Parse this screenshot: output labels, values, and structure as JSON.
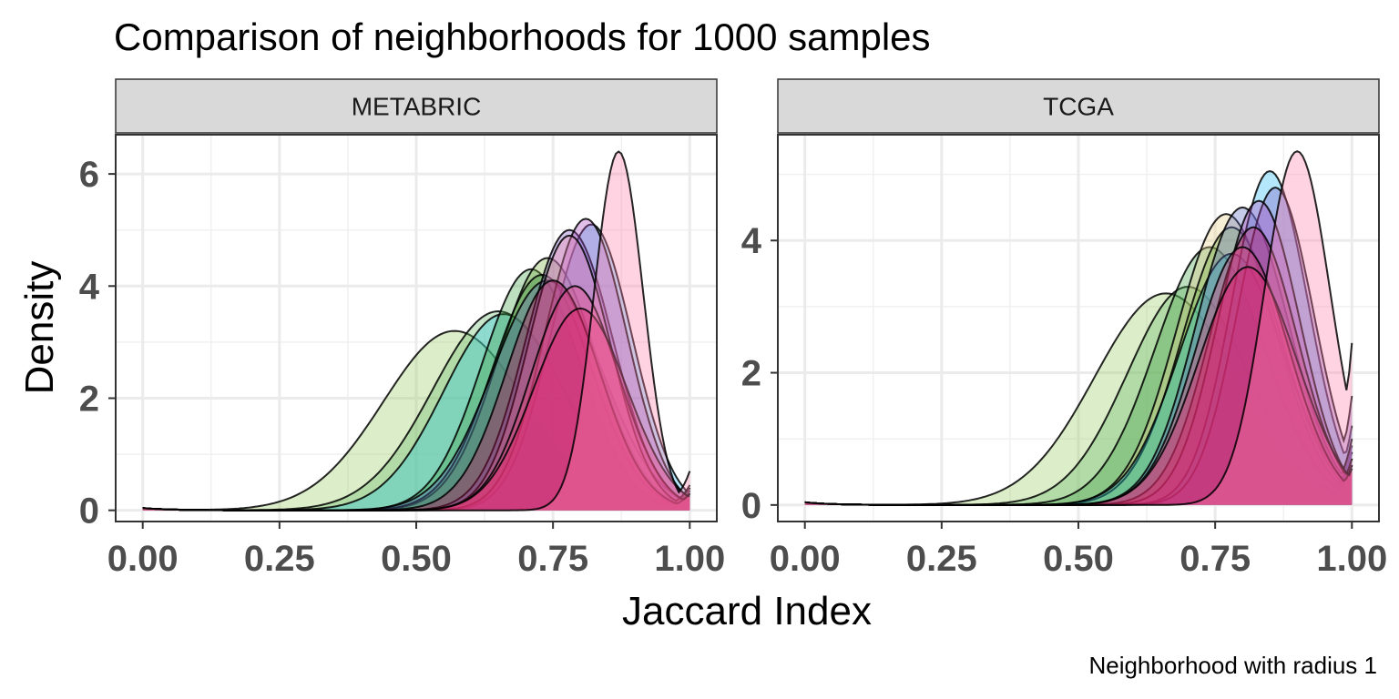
{
  "chart_data": {
    "type": "area",
    "title": "Comparison of neighborhoods for 1000 samples",
    "xlabel": "Jaccard Index",
    "ylabel": "Density",
    "caption": "Neighborhood with radius 1",
    "grid": true,
    "legend": "none",
    "panels": [
      {
        "name": "METABRIC",
        "xlim": [
          0,
          1
        ],
        "ylim": [
          -0.2,
          6.7
        ],
        "x_ticks": [
          0.0,
          0.25,
          0.5,
          0.75,
          1.0
        ],
        "x_tick_labels": [
          "0.00",
          "0.25",
          "0.50",
          "0.75",
          "1.00"
        ],
        "y_ticks": [
          0,
          2,
          4,
          6
        ],
        "y_tick_labels": [
          "0",
          "2",
          "4",
          "6"
        ],
        "series": [
          {
            "color": "#9ccc65",
            "mode": 0.57,
            "peak": 3.2,
            "sd": 0.13,
            "tail": 0.3
          },
          {
            "color": "#66bb6a",
            "mode": 0.65,
            "peak": 3.55,
            "sd": 0.12,
            "tail": 0.35
          },
          {
            "color": "#26c6da",
            "mode": 0.66,
            "peak": 3.5,
            "sd": 0.11,
            "tail": 0.4
          },
          {
            "color": "#43a047",
            "mode": 0.71,
            "peak": 4.3,
            "sd": 0.09,
            "tail": 0.4
          },
          {
            "color": "#7cb342",
            "mode": 0.74,
            "peak": 4.5,
            "sd": 0.09,
            "tail": 0.35
          },
          {
            "color": "#2e7d32",
            "mode": 0.73,
            "peak": 4.2,
            "sd": 0.09,
            "tail": 0.3
          },
          {
            "color": "#5c6bc0",
            "mode": 0.74,
            "peak": 4.1,
            "sd": 0.1,
            "tail": 0.4
          },
          {
            "color": "#29b6f6",
            "mode": 0.82,
            "peak": 5.1,
            "sd": 0.075,
            "tail": 0.35
          },
          {
            "color": "#7e57c2",
            "mode": 0.78,
            "peak": 5.0,
            "sd": 0.08,
            "tail": 0.35
          },
          {
            "color": "#ab47bc",
            "mode": 0.81,
            "peak": 5.2,
            "sd": 0.075,
            "tail": 0.4
          },
          {
            "color": "#f48fb1",
            "mode": 0.78,
            "peak": 4.9,
            "sd": 0.075,
            "tail": 0.45
          },
          {
            "color": "#c2185b",
            "mode": 0.75,
            "peak": 4.1,
            "sd": 0.085,
            "tail": 0.3
          },
          {
            "color": "#ec407a",
            "mode": 0.79,
            "peak": 4.0,
            "sd": 0.08,
            "tail": 0.3
          },
          {
            "color": "#e91e63",
            "mode": 0.8,
            "peak": 3.6,
            "sd": 0.085,
            "tail": 0.25
          },
          {
            "color": "#ff80ab",
            "mode": 0.87,
            "peak": 6.4,
            "sd": 0.045,
            "tail": 0.7
          }
        ]
      },
      {
        "name": "TCGA",
        "xlim": [
          0,
          1
        ],
        "ylim": [
          -0.25,
          5.6
        ],
        "x_ticks": [
          0.0,
          0.25,
          0.5,
          0.75,
          1.0
        ],
        "x_tick_labels": [
          "0.00",
          "0.25",
          "0.50",
          "0.75",
          "1.00"
        ],
        "y_ticks": [
          0,
          2,
          4
        ],
        "y_tick_labels": [
          "0",
          "2",
          "4"
        ],
        "series": [
          {
            "color": "#9ccc65",
            "mode": 0.66,
            "peak": 3.2,
            "sd": 0.13,
            "tail": 0.6
          },
          {
            "color": "#66bb6a",
            "mode": 0.7,
            "peak": 3.3,
            "sd": 0.11,
            "tail": 0.6
          },
          {
            "color": "#43a047",
            "mode": 0.74,
            "peak": 3.9,
            "sd": 0.1,
            "tail": 0.7
          },
          {
            "color": "#e6cf86",
            "mode": 0.77,
            "peak": 4.4,
            "sd": 0.09,
            "tail": 0.8
          },
          {
            "color": "#7cb342",
            "mode": 0.78,
            "peak": 4.2,
            "sd": 0.09,
            "tail": 0.7
          },
          {
            "color": "#26c6da",
            "mode": 0.78,
            "peak": 3.8,
            "sd": 0.095,
            "tail": 0.8
          },
          {
            "color": "#5c6bc0",
            "mode": 0.8,
            "peak": 4.5,
            "sd": 0.085,
            "tail": 0.9
          },
          {
            "color": "#29b6f6",
            "mode": 0.85,
            "peak": 5.05,
            "sd": 0.07,
            "tail": 1.2
          },
          {
            "color": "#7e57c2",
            "mode": 0.86,
            "peak": 4.8,
            "sd": 0.07,
            "tail": 1.65
          },
          {
            "color": "#ab47bc",
            "mode": 0.83,
            "peak": 4.6,
            "sd": 0.075,
            "tail": 1.0
          },
          {
            "color": "#c2185b",
            "mode": 0.82,
            "peak": 4.2,
            "sd": 0.08,
            "tail": 0.7
          },
          {
            "color": "#ec407a",
            "mode": 0.8,
            "peak": 3.9,
            "sd": 0.085,
            "tail": 0.6
          },
          {
            "color": "#e91e63",
            "mode": 0.81,
            "peak": 3.6,
            "sd": 0.09,
            "tail": 0.55
          },
          {
            "color": "#ff80ab",
            "mode": 0.9,
            "peak": 5.35,
            "sd": 0.06,
            "tail": 2.45
          }
        ]
      }
    ]
  }
}
